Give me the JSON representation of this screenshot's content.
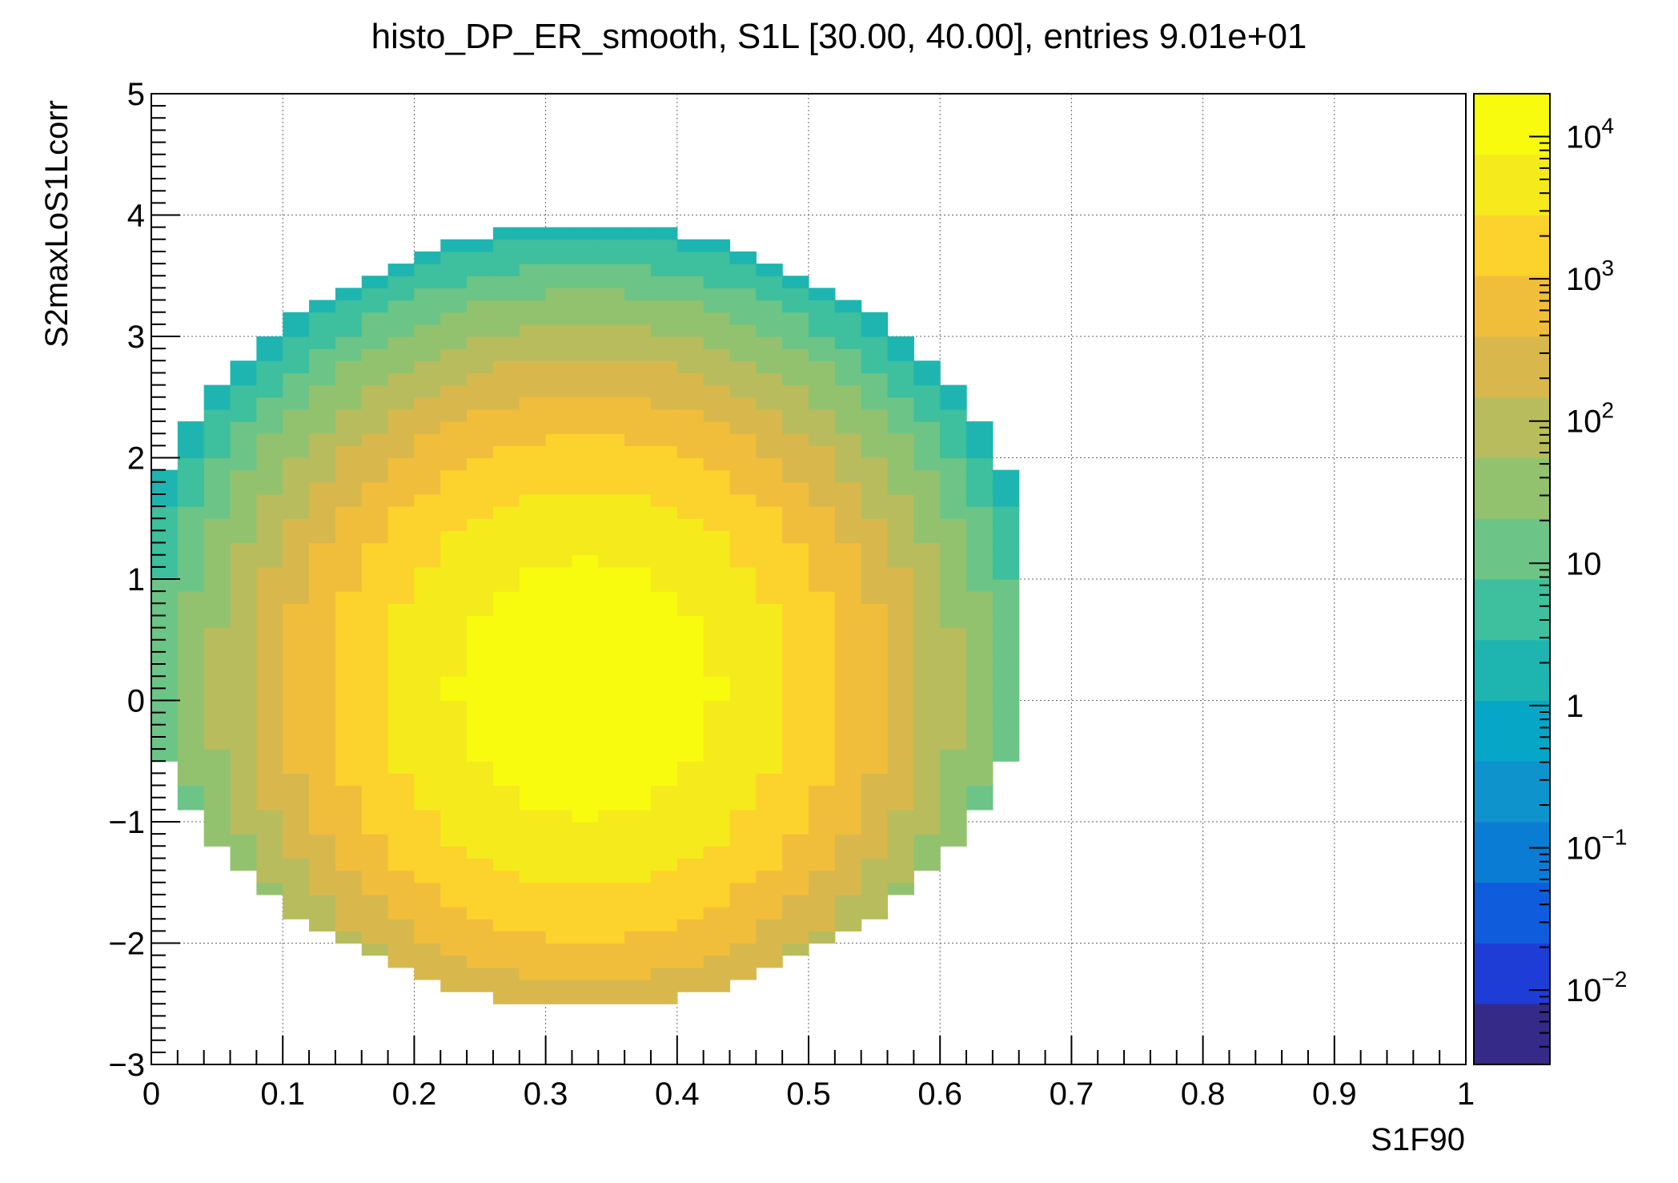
{
  "chart_data": {
    "type": "heatmap",
    "title": "histo_DP_ER_smooth, S1L [30.00, 40.00], entries 9.01e+01",
    "xlabel": "S1F90",
    "ylabel": "S2maxLoS1Lcorr",
    "xlim": [
      0,
      1
    ],
    "ylim": [
      -3,
      5
    ],
    "x_ticks": [
      "0",
      "0.1",
      "0.2",
      "0.3",
      "0.4",
      "0.5",
      "0.6",
      "0.7",
      "0.8",
      "0.9",
      "1"
    ],
    "y_ticks": [
      "−3",
      "−2",
      "−1",
      "0",
      "1",
      "2",
      "3",
      "4",
      "5"
    ],
    "z_scale": "log",
    "z_range": [
      0.003,
      20000
    ],
    "z_ticks": [
      "10^-2",
      "10^-1",
      "1",
      "10",
      "10^2",
      "10^3",
      "10^4"
    ],
    "grid": true,
    "bins": {
      "nx": 50,
      "ny": 80,
      "x_range": [
        0,
        1
      ],
      "y_range": [
        -3,
        5
      ]
    },
    "distribution": {
      "peak_x": 0.33,
      "peak_y": 0.1,
      "peak_value": 15000,
      "sigma_x": 0.085,
      "sigma_y": 0.9,
      "approx_extent_x": [
        0,
        0.66
      ],
      "approx_extent_y": [
        -2.5,
        3.9
      ],
      "fill_floor": 0.03
    },
    "colormap": [
      "#352a87",
      "#1d3dd6",
      "#0f5cdd",
      "#0b7cd4",
      "#0f93cc",
      "#06a7c6",
      "#1eb5b0",
      "#3ebf9d",
      "#6cc487",
      "#93c26f",
      "#b8bc5d",
      "#d8b84c",
      "#f1be3c",
      "#fcd22c",
      "#f5ea1b",
      "#f9fb0e"
    ]
  }
}
